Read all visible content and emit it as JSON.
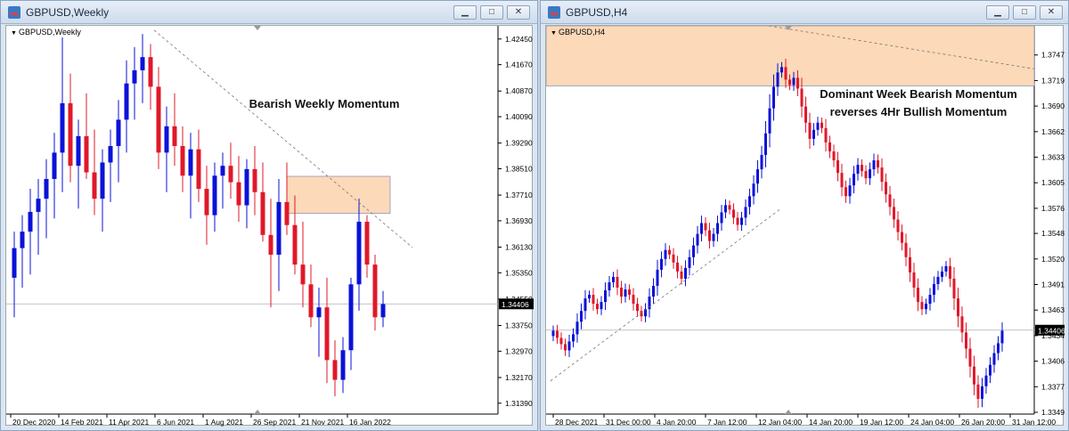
{
  "windows": [
    {
      "title": "GBPUSD,Weekly",
      "symbol_label": "GBPUSD,Weekly",
      "annotation": "Bearish Weekly Momentum",
      "current_price": "1.34406",
      "chart_data": {
        "type": "candlestick",
        "ylim": [
          1.3106,
          1.4285
        ],
        "y_ticks": [
          "1.42450",
          "1.41670",
          "1.40870",
          "1.40090",
          "1.39290",
          "1.38510",
          "1.37710",
          "1.36930",
          "1.36130",
          "1.35350",
          "1.34550",
          "1.33750",
          "1.32970",
          "1.32170",
          "1.31390"
        ],
        "x_labels": [
          "20 Dec 2020",
          "14 Feb 2021",
          "11 Apr 2021",
          "6 Jun 2021",
          "1 Aug 2021",
          "26 Sep 2021",
          "21 Nov 2021",
          "16 Jan 2022"
        ],
        "candles": [
          [
            1.352,
            1.366,
            1.34,
            1.361
          ],
          [
            1.361,
            1.371,
            1.349,
            1.366
          ],
          [
            1.366,
            1.379,
            1.353,
            1.372
          ],
          [
            1.372,
            1.382,
            1.359,
            1.376
          ],
          [
            1.376,
            1.388,
            1.364,
            1.382
          ],
          [
            1.382,
            1.396,
            1.37,
            1.39
          ],
          [
            1.39,
            1.425,
            1.378,
            1.405
          ],
          [
            1.405,
            1.414,
            1.381,
            1.386
          ],
          [
            1.386,
            1.4,
            1.373,
            1.395
          ],
          [
            1.395,
            1.408,
            1.382,
            1.384
          ],
          [
            1.384,
            1.397,
            1.371,
            1.376
          ],
          [
            1.376,
            1.391,
            1.366,
            1.387
          ],
          [
            1.387,
            1.397,
            1.375,
            1.392
          ],
          [
            1.392,
            1.406,
            1.381,
            1.4
          ],
          [
            1.4,
            1.418,
            1.39,
            1.411
          ],
          [
            1.411,
            1.422,
            1.4,
            1.415
          ],
          [
            1.415,
            1.426,
            1.405,
            1.419
          ],
          [
            1.419,
            1.423,
            1.403,
            1.41
          ],
          [
            1.41,
            1.416,
            1.385,
            1.39
          ],
          [
            1.39,
            1.404,
            1.378,
            1.398
          ],
          [
            1.398,
            1.408,
            1.386,
            1.392
          ],
          [
            1.392,
            1.398,
            1.378,
            1.383
          ],
          [
            1.383,
            1.396,
            1.37,
            1.391
          ],
          [
            1.391,
            1.397,
            1.375,
            1.379
          ],
          [
            1.379,
            1.386,
            1.362,
            1.371
          ],
          [
            1.371,
            1.387,
            1.366,
            1.383
          ],
          [
            1.383,
            1.39,
            1.373,
            1.386
          ],
          [
            1.386,
            1.393,
            1.376,
            1.381
          ],
          [
            1.381,
            1.389,
            1.369,
            1.374
          ],
          [
            1.374,
            1.388,
            1.367,
            1.385
          ],
          [
            1.385,
            1.392,
            1.371,
            1.378
          ],
          [
            1.378,
            1.387,
            1.363,
            1.365
          ],
          [
            1.365,
            1.376,
            1.343,
            1.359
          ],
          [
            1.359,
            1.382,
            1.348,
            1.375
          ],
          [
            1.375,
            1.387,
            1.365,
            1.368
          ],
          [
            1.368,
            1.377,
            1.353,
            1.356
          ],
          [
            1.356,
            1.369,
            1.343,
            1.35
          ],
          [
            1.35,
            1.356,
            1.337,
            1.34
          ],
          [
            1.34,
            1.349,
            1.328,
            1.343
          ],
          [
            1.343,
            1.352,
            1.32,
            1.327
          ],
          [
            1.327,
            1.333,
            1.316,
            1.321
          ],
          [
            1.321,
            1.334,
            1.317,
            1.33
          ],
          [
            1.33,
            1.352,
            1.324,
            1.35
          ],
          [
            1.35,
            1.376,
            1.342,
            1.369
          ],
          [
            1.369,
            1.371,
            1.352,
            1.356
          ],
          [
            1.356,
            1.359,
            1.336,
            1.34
          ],
          [
            1.34,
            1.348,
            1.337,
            1.344
          ]
        ]
      },
      "zone": {
        "low": 1.3715,
        "high": 1.3828
      }
    },
    {
      "title": "GBPUSD,H4",
      "symbol_label": "GBPUSD,H4",
      "annotation_line1": "Dominant Week Bearish Momentum",
      "annotation_line2": "reverses 4Hr Bullish Momentum",
      "current_price": "1.34406",
      "chart_data": {
        "type": "candlestick",
        "ylim": [
          1.3347,
          1.378
        ],
        "y_ticks": [
          "1.37475",
          "1.37190",
          "1.36905",
          "1.36620",
          "1.36335",
          "1.36050",
          "1.35765",
          "1.35485",
          "1.35200",
          "1.34915",
          "1.34630",
          "1.34345",
          "1.34060",
          "1.33775",
          "1.33490"
        ],
        "x_labels": [
          "28 Dec 2021",
          "31 Dec 00:00",
          "4 Jan 20:00",
          "7 Jan 12:00",
          "12 Jan 04:00",
          "14 Jan 20:00",
          "19 Jan 12:00",
          "24 Jan 04:00",
          "26 Jan 20:00",
          "31 Jan 12:00"
        ],
        "closes": [
          1.344,
          1.3432,
          1.3425,
          1.3418,
          1.3428,
          1.3436,
          1.345,
          1.3462,
          1.3476,
          1.348,
          1.347,
          1.3464,
          1.3472,
          1.3485,
          1.3494,
          1.35,
          1.3488,
          1.3478,
          1.3486,
          1.348,
          1.347,
          1.3462,
          1.3456,
          1.3464,
          1.3478,
          1.349,
          1.3508,
          1.352,
          1.353,
          1.3525,
          1.3516,
          1.3506,
          1.3498,
          1.351,
          1.3522,
          1.3535,
          1.3548,
          1.356,
          1.3552,
          1.354,
          1.3548,
          1.356,
          1.3572,
          1.358,
          1.3575,
          1.3566,
          1.3558,
          1.3566,
          1.3578,
          1.359,
          1.3604,
          1.362,
          1.3636,
          1.366,
          1.3688,
          1.3712,
          1.3728,
          1.3734,
          1.372,
          1.3714,
          1.3722,
          1.371,
          1.369,
          1.3672,
          1.3654,
          1.3664,
          1.3672,
          1.3666,
          1.365,
          1.364,
          1.363,
          1.3616,
          1.36,
          1.359,
          1.3602,
          1.3615,
          1.3625,
          1.3618,
          1.361,
          1.362,
          1.363,
          1.3622,
          1.3606,
          1.3592,
          1.3578,
          1.3564,
          1.355,
          1.3538,
          1.3522,
          1.3505,
          1.3488,
          1.3472,
          1.3464,
          1.347,
          1.348,
          1.3492,
          1.35,
          1.3506,
          1.3512,
          1.3498,
          1.3476,
          1.3456,
          1.3438,
          1.342,
          1.34,
          1.338,
          1.3364,
          1.3378,
          1.339,
          1.3402,
          1.3415,
          1.3426,
          1.344
        ]
      }
    }
  ]
}
